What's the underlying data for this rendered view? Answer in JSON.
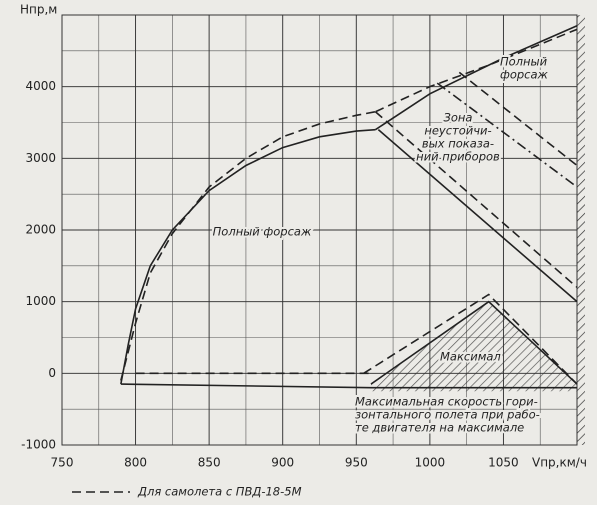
{
  "chart_data": {
    "type": "line",
    "y_label": "Hпр,м",
    "x_label": "Vпр,км/ч",
    "xlim": [
      750,
      1100
    ],
    "ylim": [
      -1000,
      5000
    ],
    "xticks": [
      750,
      800,
      850,
      900,
      950,
      1000,
      1050
    ],
    "yticks": [
      -1000,
      0,
      1000,
      2000,
      3000,
      4000
    ],
    "grid": true,
    "series": [
      {
        "style": "solid",
        "color": "#222",
        "x": [
          790,
          795,
          800,
          810,
          825,
          850,
          875,
          900,
          925,
          950,
          963
        ],
        "values": [
          -150,
          400,
          900,
          1500,
          2000,
          2550,
          2900,
          3150,
          3300,
          3380,
          3400
        ]
      },
      {
        "style": "solid",
        "color": "#222",
        "x": [
          963,
          1000,
          1050,
          1100
        ],
        "values": [
          3400,
          3900,
          4400,
          4850
        ]
      },
      {
        "name": "Для самолета с ПВД-18-5М",
        "style": "dashed",
        "color": "#222",
        "x": [
          790,
          800,
          810,
          825,
          850,
          875,
          900,
          925,
          950,
          963
        ],
        "values": [
          -100,
          700,
          1400,
          1950,
          2600,
          3000,
          3300,
          3480,
          3600,
          3650
        ]
      },
      {
        "style": "dashed",
        "color": "#222",
        "x": [
          963,
          1000,
          1040,
          1100
        ],
        "values": [
          3650,
          4000,
          4300,
          4800
        ]
      },
      {
        "style": "solid",
        "color": "#222",
        "x": [
          965,
          1100
        ],
        "values": [
          3400,
          1000
        ]
      },
      {
        "style": "dashed",
        "color": "#222",
        "x": [
          963,
          1100
        ],
        "values": [
          3650,
          1200
        ]
      },
      {
        "style": "dashdot",
        "color": "#222",
        "x": [
          1005,
          1100
        ],
        "values": [
          4050,
          2600
        ]
      },
      {
        "style": "dashed",
        "color": "#222",
        "x": [
          1020,
          1100
        ],
        "values": [
          4200,
          2900
        ]
      },
      {
        "style": "solid",
        "color": "#222",
        "x": [
          790,
          960,
          1100
        ],
        "values": [
          -150,
          -200,
          -200
        ]
      },
      {
        "style": "dashed",
        "color": "#222",
        "x": [
          800,
          960
        ],
        "values": [
          0,
          0
        ]
      },
      {
        "style": "solid",
        "color": "#222",
        "x": [
          960,
          1040,
          1100
        ],
        "values": [
          -150,
          1000,
          -150
        ]
      },
      {
        "style": "dashed",
        "color": "#222",
        "x": [
          955,
          1040,
          1100
        ],
        "values": [
          0,
          1100,
          -150
        ]
      }
    ],
    "annotations": [
      [
        "Полный",
        "форсаж"
      ],
      [
        "Зона",
        "неустойчи-",
        "вых показа-",
        "ний приборов"
      ],
      [
        "Полный форсаж"
      ],
      [
        "Максимал"
      ],
      [
        "Максимальная скорость гори-",
        "зонтального полета при рабо-",
        "те двигателя на максимале"
      ]
    ]
  }
}
